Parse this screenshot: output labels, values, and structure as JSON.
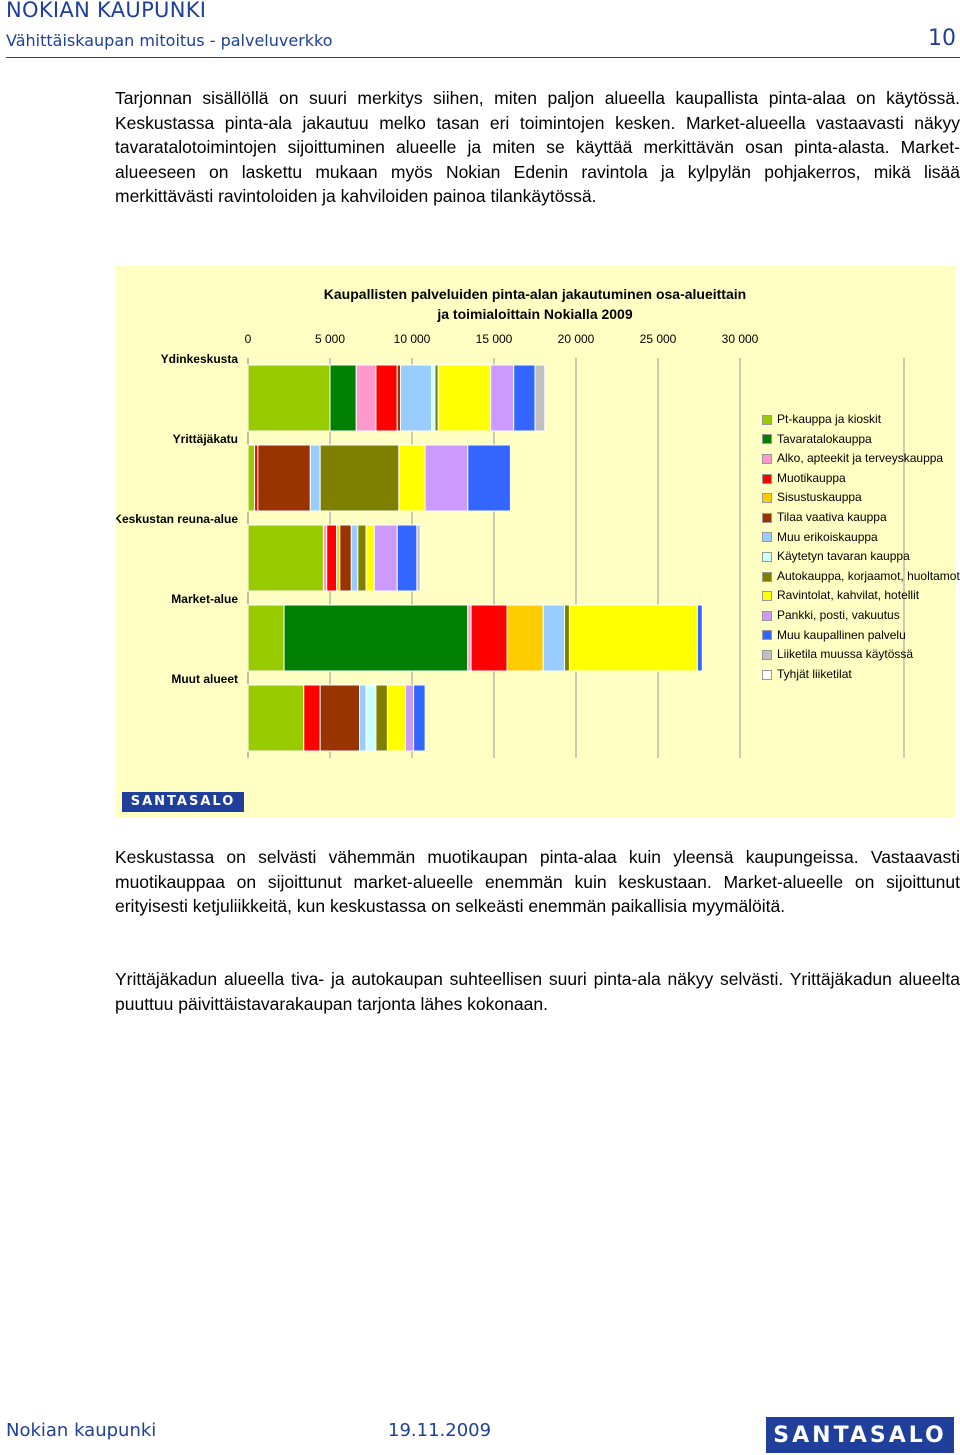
{
  "header": {
    "title": "NOKIAN KAUPUNKI",
    "subtitle": "Vähittäiskaupan mitoitus - palveluverkko",
    "page_number": "10"
  },
  "paragraphs": {
    "intro": "Tarjonnan sisällöllä on suuri merkitys siihen, miten paljon alueella kaupallista pinta-alaa on käytössä. Keskustassa pinta-ala jakautuu melko tasan eri toimintojen kesken. Market-alueella vastaavasti näkyy tavaratalotoimintojen sijoittuminen alueelle ja miten se käyttää merkittävän osan pinta-alasta. Market-alueeseen on laskettu mukaan myös Nokian Edenin ravintola ja kylpylän pohjakerros, mikä lisää merkittävästi ravintoloiden ja kahviloiden painoa tilankäytössä.",
    "p2": "Keskustassa on selvästi vähemmän muotikaupan pinta-alaa kuin yleensä kaupungeissa. Vastaavasti muotikauppaa on sijoittunut market-alueelle enemmän kuin keskustaan. Market-alueelle on sijoittunut erityisesti ketjuliikkeitä, kun keskustassa on selkeästi enemmän paikallisia myymälöitä.",
    "p3": "Yrittäjäkadun alueella tiva- ja autokaupan suhteellisen suuri pinta-ala näkyy selvästi. Yrittäjäkadun alueelta puuttuu päivittäistavarakaupan tarjonta lähes kokonaan."
  },
  "chart_logo": "SANTASALO",
  "footer": {
    "left": "Nokian kaupunki",
    "date": "19.11.2009",
    "logo": "SANTASALO"
  },
  "chart_data": {
    "type": "bar",
    "orientation": "horizontal",
    "stacked": true,
    "title_line1": "Kaupallisten palveluiden pinta-alan jakautuminen osa-alueittain",
    "title_line2": "ja toimialoittain Nokialla 2009",
    "xlim": [
      0,
      30000
    ],
    "x_ticks": [
      "0",
      "5 000",
      "10 000",
      "15 000",
      "20 000",
      "25 000",
      "30 000"
    ],
    "x_tick_values": [
      0,
      5000,
      10000,
      15000,
      20000,
      25000,
      30000
    ],
    "grid": true,
    "legend_position": "right",
    "categories": [
      "Ydinkeskusta",
      "Yrittäjäkatu",
      "Keskustan reuna-alue",
      "Market-alue",
      "Muut alueet"
    ],
    "series": [
      {
        "name": "Pt-kauppa ja kioskit",
        "color": "#99cc00",
        "values": [
          5000,
          400,
          4600,
          2200,
          3400
        ]
      },
      {
        "name": "Tavaratalokauppa",
        "color": "#008000",
        "values": [
          1600,
          0,
          0,
          11200,
          0
        ]
      },
      {
        "name": "Alko, apteekit ja terveyskauppa",
        "color": "#ff99cc",
        "values": [
          1200,
          0,
          200,
          200,
          0
        ]
      },
      {
        "name": "Muotikauppa",
        "color": "#ff0000",
        "values": [
          1300,
          200,
          600,
          2200,
          1000
        ]
      },
      {
        "name": "Sisustuskauppa",
        "color": "#ffcc00",
        "values": [
          0,
          0,
          200,
          2200,
          0
        ]
      },
      {
        "name": "Tilaa vaativa kauppa",
        "color": "#993300",
        "values": [
          200,
          3200,
          700,
          0,
          2400
        ]
      },
      {
        "name": "Muu erikoiskauppa",
        "color": "#99ccff",
        "values": [
          1900,
          600,
          400,
          1300,
          400
        ]
      },
      {
        "name": "Käytetyn tavaran kauppa",
        "color": "#ccffff",
        "values": [
          200,
          0,
          0,
          0,
          600
        ]
      },
      {
        "name": "Autokauppa, korjaamot, huoltamot",
        "color": "#808000",
        "values": [
          200,
          4800,
          500,
          300,
          700
        ]
      },
      {
        "name": "Ravintolat, kahvilat, hotellit",
        "color": "#ffff00",
        "values": [
          3200,
          1600,
          500,
          7800,
          1100
        ]
      },
      {
        "name": "Pankki, posti, vakuutus",
        "color": "#cc99ff",
        "values": [
          1400,
          2600,
          1400,
          0,
          500
        ]
      },
      {
        "name": "Muu kaupallinen palvelu",
        "color": "#3366ff",
        "values": [
          1300,
          2600,
          1200,
          300,
          700
        ]
      },
      {
        "name": "Liiketila muussa käytössä",
        "color": "#c0c0c0",
        "values": [
          600,
          0,
          200,
          0,
          0
        ]
      },
      {
        "name": "Tyhjät liiketilat",
        "color": "#ffffff",
        "values": [
          0,
          0,
          0,
          0,
          0
        ]
      }
    ]
  }
}
